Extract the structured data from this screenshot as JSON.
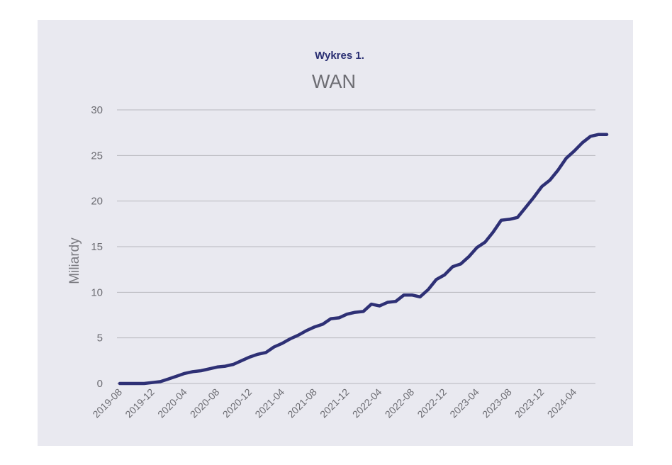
{
  "chart_data": {
    "type": "line",
    "subtitle": "Wykres 1.",
    "title": "WAN",
    "xlabel": "",
    "ylabel": "Miliardy",
    "ylim": [
      0,
      30
    ],
    "yticks": [
      0,
      5,
      10,
      15,
      20,
      25,
      30
    ],
    "grid": true,
    "x_tick_labels": [
      "2019-08",
      "2019-12",
      "2020-04",
      "2020-08",
      "2020-12",
      "2021-04",
      "2021-08",
      "2021-12",
      "2022-04",
      "2022-08",
      "2022-12",
      "2023-04",
      "2023-08",
      "2023-12",
      "2024-04"
    ],
    "series": [
      {
        "color": "#2e3075",
        "x": [
          "2019-08",
          "2019-09",
          "2019-10",
          "2019-11",
          "2019-12",
          "2020-01",
          "2020-02",
          "2020-03",
          "2020-04",
          "2020-05",
          "2020-06",
          "2020-07",
          "2020-08",
          "2020-09",
          "2020-10",
          "2020-11",
          "2020-12",
          "2021-01",
          "2021-02",
          "2021-03",
          "2021-04",
          "2021-05",
          "2021-06",
          "2021-07",
          "2021-08",
          "2021-09",
          "2021-10",
          "2021-11",
          "2021-12",
          "2022-01",
          "2022-02",
          "2022-03",
          "2022-04",
          "2022-05",
          "2022-06",
          "2022-07",
          "2022-08",
          "2022-09",
          "2022-10",
          "2022-11",
          "2022-12",
          "2023-01",
          "2023-02",
          "2023-03",
          "2023-04",
          "2023-05",
          "2023-06",
          "2023-07",
          "2023-08",
          "2023-09",
          "2023-10",
          "2023-11",
          "2023-12",
          "2024-01",
          "2024-02",
          "2024-03",
          "2024-04",
          "2024-05",
          "2024-06",
          "2024-07",
          "2024-08"
        ],
        "values": [
          0.0,
          0.0,
          0.0,
          0.0,
          0.1,
          0.2,
          0.5,
          0.8,
          1.1,
          1.3,
          1.4,
          1.6,
          1.8,
          1.9,
          2.1,
          2.5,
          2.9,
          3.2,
          3.4,
          4.0,
          4.4,
          4.9,
          5.3,
          5.8,
          6.2,
          6.5,
          7.1,
          7.2,
          7.6,
          7.8,
          7.9,
          8.7,
          8.5,
          8.9,
          9.0,
          9.7,
          9.7,
          9.5,
          10.3,
          11.4,
          11.9,
          12.8,
          13.1,
          13.9,
          14.9,
          15.5,
          16.6,
          17.9,
          18.0,
          18.2,
          19.3,
          20.4,
          21.6,
          22.3,
          23.4,
          24.7,
          25.5,
          26.4,
          27.1,
          27.3,
          27.3
        ]
      }
    ]
  }
}
